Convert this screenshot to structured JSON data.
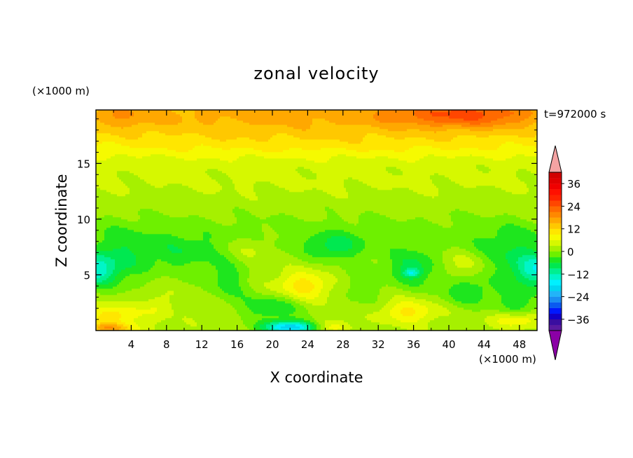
{
  "chart_data": {
    "type": "heatmap",
    "title": "zonal velocity",
    "xlabel": "X coordinate",
    "ylabel": "Z coordinate",
    "x_unit": "(×1000 m)",
    "y_unit": "(×1000 m)",
    "time_label": "t=972000 s",
    "xlim": [
      0,
      50
    ],
    "ylim": [
      0,
      19.8
    ],
    "x_ticks": [
      4,
      8,
      12,
      16,
      20,
      24,
      28,
      32,
      36,
      40,
      44,
      48
    ],
    "y_ticks": [
      5,
      10,
      15
    ],
    "colorbar": {
      "levels": [
        -42,
        -39,
        -36,
        -33,
        -30,
        -27,
        -24,
        -21,
        -18,
        -15,
        -12,
        -9,
        -6,
        -3,
        0,
        3,
        6,
        9,
        12,
        15,
        18,
        21,
        24,
        27,
        30,
        33,
        36,
        39,
        42
      ],
      "labels": [
        -36,
        -24,
        -12,
        0,
        12,
        24,
        36
      ],
      "under_color": "#8b00a6",
      "over_color": "#f4a3a3",
      "colors": [
        "#5a1aa0",
        "#3a0ea0",
        "#1200c8",
        "#0018ff",
        "#0a5af0",
        "#1a8ef2",
        "#22b4f8",
        "#00d6f0",
        "#00f0ff",
        "#00f5c8",
        "#00ef90",
        "#00e850",
        "#1ee61e",
        "#6ef000",
        "#a6f000",
        "#d6f800",
        "#f6fa00",
        "#ffe600",
        "#ffc800",
        "#ffa800",
        "#ff8800",
        "#ff6a00",
        "#ff4600",
        "#ff2400",
        "#ff1000",
        "#f00000",
        "#e00000",
        "#d20000"
      ]
    },
    "field": {
      "background": 2.0,
      "features": [
        {
          "x": 25,
          "z": 19.5,
          "sx": 60,
          "sz": 2.4,
          "v": 14
        },
        {
          "x": 42,
          "z": 19.4,
          "sx": 8,
          "sz": 1.2,
          "v": 10
        },
        {
          "x": 3,
          "z": 19.3,
          "sx": 4,
          "sz": 1.2,
          "v": 4
        },
        {
          "x": 25,
          "z": 16.6,
          "sx": 60,
          "sz": 1.6,
          "v": 5
        },
        {
          "x": 25,
          "z": 13.5,
          "sx": 60,
          "sz": 1.3,
          "v": 1.5
        },
        {
          "x": 30,
          "z": 8.5,
          "sx": 60,
          "sz": 2.2,
          "v": -3.5
        },
        {
          "x": 0,
          "z": 5.4,
          "sx": 2.5,
          "sz": 1.4,
          "v": -13
        },
        {
          "x": 50,
          "z": 5.4,
          "sx": 2.5,
          "sz": 1.4,
          "v": -13
        },
        {
          "x": 3,
          "z": 6.5,
          "sx": 4,
          "sz": 2.6,
          "v": -6
        },
        {
          "x": 47,
          "z": 6.5,
          "sx": 4,
          "sz": 2.6,
          "v": -6
        },
        {
          "x": 10,
          "z": 6.8,
          "sx": 4,
          "sz": 1.8,
          "v": -5
        },
        {
          "x": 15,
          "z": 4.5,
          "sx": 2.5,
          "sz": 2.0,
          "v": -6
        },
        {
          "x": 17.5,
          "z": 7.4,
          "sx": 2.5,
          "sz": 1.2,
          "v": 4
        },
        {
          "x": 20,
          "z": 2.1,
          "sx": 3.5,
          "sz": 1.2,
          "v": -8
        },
        {
          "x": 22,
          "z": 0.3,
          "sx": 3,
          "sz": 0.6,
          "v": -22
        },
        {
          "x": 23.5,
          "z": 4.0,
          "sx": 3,
          "sz": 1.3,
          "v": 9
        },
        {
          "x": 27,
          "z": 7.5,
          "sx": 3,
          "sz": 1.2,
          "v": -7
        },
        {
          "x": 30,
          "z": 4.0,
          "sx": 2.5,
          "sz": 2.0,
          "v": -4
        },
        {
          "x": 36,
          "z": 5.5,
          "sx": 3,
          "sz": 1.6,
          "v": -9
        },
        {
          "x": 35.8,
          "z": 5.2,
          "sx": 0.9,
          "sz": 0.35,
          "v": -9
        },
        {
          "x": 35.5,
          "z": 1.7,
          "sx": 3,
          "sz": 1.0,
          "v": 8
        },
        {
          "x": 41.5,
          "z": 6.0,
          "sx": 3,
          "sz": 1.3,
          "v": 4
        },
        {
          "x": 42,
          "z": 3.5,
          "sx": 3,
          "sz": 1.4,
          "v": -7
        },
        {
          "x": 48,
          "z": 2.5,
          "sx": 3,
          "sz": 1.5,
          "v": -6
        },
        {
          "x": 48,
          "z": 1.0,
          "sx": 3,
          "sz": 0.7,
          "v": 8
        },
        {
          "x": 2,
          "z": 1.4,
          "sx": 3,
          "sz": 0.9,
          "v": 9
        },
        {
          "x": 1.5,
          "z": 0.2,
          "sx": 3,
          "sz": 0.5,
          "v": 14
        },
        {
          "x": 7,
          "z": 2.2,
          "sx": 1.5,
          "sz": 1.2,
          "v": 4
        },
        {
          "x": 27,
          "z": 0.4,
          "sx": 2,
          "sz": 0.6,
          "v": 6
        }
      ]
    }
  }
}
